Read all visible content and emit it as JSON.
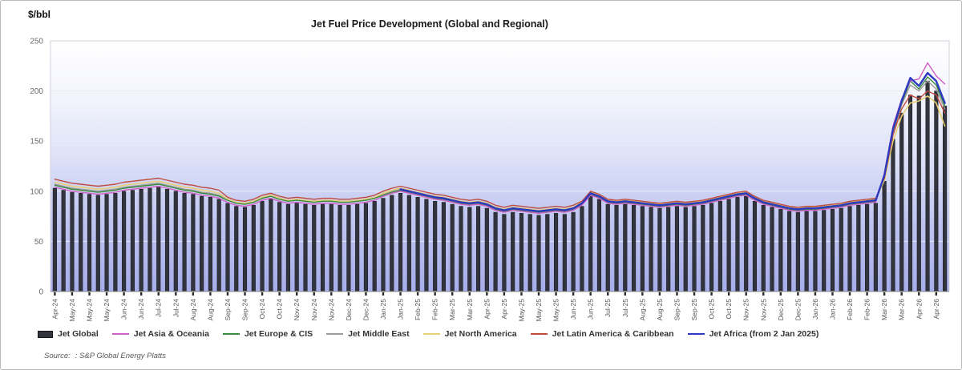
{
  "footer": {
    "source_label": "Source:",
    "source_value": ": S&P Global Energy Platts"
  },
  "chart_data": {
    "type": "bar",
    "title": "Jet Fuel Price Development (Global and Regional)",
    "unit": "$/bbl",
    "xlabel": "",
    "ylabel": "$/bbl",
    "ylim": [
      0,
      250
    ],
    "yticks": [
      0,
      50,
      100,
      150,
      200,
      250
    ],
    "grid": true,
    "legend_position": "bottom",
    "plot_bg_gradient": {
      "stops": [
        [
          "#ffffff",
          0
        ],
        [
          "#f6f7fd",
          0.18
        ],
        [
          "#dfe3f8",
          0.45
        ],
        [
          "#bfc5f0",
          0.72
        ],
        [
          "#a6ade9",
          1
        ]
      ]
    },
    "plot_border_color": "#cfd2dc",
    "grid_color": "#eceef6",
    "axis_text_color": "#6b6b6b",
    "x_labels": [
      "Apr-24",
      "May-24",
      "May-24",
      "May-24",
      "Jun-24",
      "Jun-24",
      "Jul-24",
      "Jul-24",
      "Aug-24",
      "Aug-24",
      "Sep-24",
      "Sep-24",
      "Oct-24",
      "Oct-24",
      "Nov-24",
      "Nov-24",
      "Nov-24",
      "Dec-24",
      "Dec-24",
      "Jan-25",
      "Jan-25",
      "Feb-25",
      "Feb-25",
      "Mar-25",
      "Mar-25",
      "Apr-25",
      "Apr-25",
      "May-25",
      "May-25",
      "May-25",
      "Jun-25",
      "Jun-25",
      "Jul-25",
      "Jul-25",
      "Aug-25",
      "Aug-25",
      "Sep-25",
      "Sep-25",
      "Oct-25",
      "Oct-25",
      "Nov-25",
      "Nov-25",
      "Dec-25",
      "Dec-25",
      "Jan-26",
      "Jan-26",
      "Feb-26",
      "Feb-26",
      "Mar-26",
      "Mar-26",
      "Apr-26",
      "Apr-26"
    ],
    "label_every": 2,
    "series": [
      {
        "name": "Jet Global",
        "kind": "bar",
        "color": "#32343d",
        "z": 0,
        "values": [
          103,
          101,
          99,
          98,
          97,
          96,
          97,
          98,
          100,
          101,
          102,
          103,
          104,
          102,
          100,
          98,
          97,
          95,
          94,
          92,
          88,
          85,
          84,
          86,
          90,
          92,
          89,
          87,
          88,
          87,
          86,
          87,
          87,
          86,
          86,
          87,
          88,
          90,
          93,
          96,
          98,
          96,
          94,
          92,
          90,
          89,
          87,
          85,
          84,
          85,
          83,
          79,
          77,
          79,
          78,
          77,
          76,
          77,
          78,
          77,
          79,
          85,
          95,
          92,
          87,
          86,
          87,
          86,
          85,
          84,
          83,
          84,
          85,
          84,
          85,
          86,
          88,
          90,
          92,
          94,
          95,
          90,
          86,
          84,
          82,
          80,
          79,
          80,
          80,
          81,
          82,
          83,
          85,
          86,
          87,
          88,
          110,
          152,
          178,
          196,
          195,
          210,
          200,
          185
        ]
      },
      {
        "name": "Jet Asia & Oceania",
        "kind": "line",
        "color": "#d05fc6",
        "width": 1.4,
        "z": 5,
        "values": [
          104,
          102,
          100,
          99,
          98,
          97,
          98,
          99,
          101,
          102,
          103,
          104,
          105,
          103,
          101,
          99,
          98,
          96,
          95,
          93,
          89,
          86,
          85,
          87,
          91,
          93,
          90,
          88,
          89,
          88,
          87,
          88,
          88,
          87,
          87,
          88,
          89,
          91,
          95,
          98,
          100,
          98,
          96,
          94,
          92,
          91,
          89,
          87,
          86,
          87,
          85,
          81,
          79,
          81,
          80,
          79,
          78,
          79,
          80,
          79,
          81,
          86,
          96,
          93,
          88,
          87,
          88,
          87,
          86,
          85,
          84,
          85,
          86,
          85,
          86,
          87,
          89,
          91,
          93,
          95,
          96,
          91,
          87,
          85,
          83,
          81,
          80,
          81,
          81,
          82,
          83,
          84,
          86,
          87,
          88,
          89,
          118,
          165,
          192,
          210,
          212,
          228,
          215,
          207
        ]
      },
      {
        "name": "Jet Europe & CIS",
        "kind": "line",
        "color": "#3a8a3f",
        "width": 1.4,
        "z": 4,
        "values": [
          106,
          104,
          102,
          101,
          100,
          99,
          100,
          101,
          103,
          104,
          105,
          106,
          107,
          105,
          103,
          101,
          100,
          98,
          97,
          95,
          91,
          88,
          87,
          89,
          93,
          95,
          92,
          90,
          91,
          90,
          89,
          90,
          90,
          89,
          89,
          90,
          91,
          93,
          96,
          99,
          101,
          99,
          97,
          95,
          93,
          92,
          90,
          88,
          87,
          88,
          86,
          82,
          80,
          82,
          81,
          80,
          79,
          80,
          81,
          80,
          82,
          87,
          97,
          94,
          89,
          88,
          89,
          88,
          87,
          86,
          85,
          86,
          87,
          86,
          87,
          88,
          90,
          92,
          94,
          96,
          97,
          92,
          88,
          86,
          84,
          82,
          81,
          82,
          82,
          83,
          84,
          85,
          87,
          88,
          89,
          90,
          115,
          160,
          188,
          210,
          202,
          214,
          206,
          185
        ]
      },
      {
        "name": "Jet Middle East",
        "kind": "line",
        "color": "#9b9b9b",
        "width": 1.4,
        "z": 1,
        "values": [
          107,
          105,
          103,
          102,
          101,
          100,
          101,
          102,
          104,
          105,
          106,
          107,
          108,
          106,
          104,
          102,
          101,
          99,
          98,
          96,
          92,
          89,
          88,
          90,
          94,
          96,
          93,
          91,
          92,
          91,
          90,
          91,
          91,
          90,
          90,
          91,
          92,
          94,
          97,
          100,
          102,
          100,
          98,
          96,
          94,
          93,
          91,
          89,
          88,
          89,
          87,
          83,
          81,
          83,
          82,
          81,
          80,
          81,
          82,
          81,
          83,
          88,
          98,
          95,
          90,
          89,
          90,
          89,
          88,
          87,
          86,
          87,
          88,
          87,
          88,
          89,
          91,
          93,
          95,
          97,
          98,
          93,
          89,
          87,
          85,
          83,
          82,
          83,
          83,
          84,
          85,
          86,
          88,
          89,
          90,
          91,
          114,
          158,
          186,
          206,
          200,
          210,
          202,
          182
        ]
      },
      {
        "name": "Jet North America",
        "kind": "line",
        "color": "#e8d077",
        "width": 1.6,
        "z": 2,
        "values": [
          109,
          107,
          105,
          104,
          103,
          102,
          103,
          104,
          106,
          107,
          108,
          109,
          110,
          108,
          106,
          104,
          103,
          101,
          100,
          98,
          92,
          89,
          88,
          90,
          94,
          96,
          93,
          91,
          92,
          91,
          90,
          91,
          91,
          90,
          90,
          91,
          92,
          94,
          98,
          101,
          103,
          101,
          99,
          97,
          95,
          94,
          92,
          90,
          89,
          90,
          88,
          84,
          82,
          84,
          83,
          82,
          81,
          82,
          83,
          82,
          84,
          89,
          99,
          96,
          91,
          90,
          91,
          90,
          89,
          88,
          87,
          88,
          89,
          88,
          89,
          90,
          92,
          94,
          96,
          98,
          99,
          94,
          90,
          88,
          86,
          84,
          83,
          84,
          84,
          85,
          86,
          87,
          89,
          90,
          91,
          92,
          111,
          150,
          175,
          188,
          190,
          195,
          188,
          165
        ]
      },
      {
        "name": "Jet Latin America & Caribbean",
        "kind": "line",
        "color": "#bf4b41",
        "width": 1.4,
        "z": 3,
        "values": [
          112,
          110,
          108,
          107,
          106,
          105,
          106,
          107,
          109,
          110,
          111,
          112,
          113,
          111,
          109,
          107,
          106,
          104,
          103,
          101,
          94,
          91,
          90,
          92,
          96,
          98,
          95,
          93,
          94,
          93,
          92,
          93,
          93,
          92,
          92,
          93,
          94,
          96,
          100,
          103,
          105,
          103,
          101,
          99,
          97,
          96,
          94,
          92,
          91,
          92,
          90,
          86,
          84,
          86,
          85,
          84,
          83,
          84,
          85,
          84,
          86,
          90,
          100,
          97,
          92,
          91,
          92,
          91,
          90,
          89,
          88,
          89,
          90,
          89,
          90,
          91,
          93,
          95,
          97,
          99,
          100,
          95,
          91,
          89,
          87,
          85,
          84,
          85,
          85,
          86,
          87,
          88,
          90,
          91,
          92,
          93,
          113,
          156,
          182,
          196,
          192,
          200,
          196,
          178
        ]
      },
      {
        "name": "Jet Africa (from 2 Jan 2025)",
        "kind": "line",
        "color": "#2c39c0",
        "width": 2.4,
        "z": 6,
        "values": [
          null,
          null,
          null,
          null,
          null,
          null,
          null,
          null,
          null,
          null,
          null,
          null,
          null,
          null,
          null,
          null,
          null,
          null,
          null,
          null,
          null,
          null,
          null,
          null,
          null,
          null,
          null,
          null,
          null,
          null,
          null,
          null,
          null,
          null,
          null,
          null,
          null,
          null,
          null,
          null,
          102,
          100,
          98,
          96,
          94,
          93,
          91,
          89,
          88,
          89,
          87,
          83,
          81,
          83,
          82,
          81,
          80,
          81,
          82,
          81,
          83,
          88,
          98,
          95,
          90,
          89,
          90,
          89,
          88,
          87,
          86,
          87,
          88,
          87,
          88,
          89,
          91,
          93,
          95,
          97,
          98,
          93,
          89,
          87,
          85,
          83,
          82,
          83,
          83,
          84,
          85,
          86,
          88,
          89,
          90,
          91,
          116,
          162,
          190,
          213,
          205,
          218,
          210,
          188
        ]
      }
    ]
  }
}
